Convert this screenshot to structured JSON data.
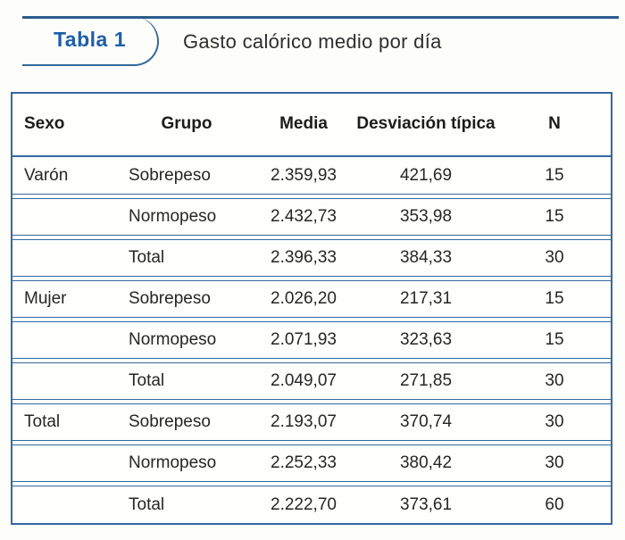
{
  "tab": {
    "label": "Tabla 1"
  },
  "title": "Gasto calórico medio por día",
  "table": {
    "columns": [
      "Sexo",
      "Grupo",
      "Media",
      "Desviación típica",
      "N"
    ],
    "rows": [
      [
        "Varón",
        "Sobrepeso",
        "2.359,93",
        "421,69",
        "15"
      ],
      [
        "",
        "Normopeso",
        "2.432,73",
        "353,98",
        "15"
      ],
      [
        "",
        "Total",
        "2.396,33",
        "384,33",
        "30"
      ],
      [
        "Mujer",
        "Sobrepeso",
        "2.026,20",
        "217,31",
        "15"
      ],
      [
        "",
        "Normopeso",
        "2.071,93",
        "323,63",
        "15"
      ],
      [
        "",
        "Total",
        "2.049,07",
        "271,85",
        "30"
      ],
      [
        "Total",
        "Sobrepeso",
        "2.193,07",
        "370,74",
        "30"
      ],
      [
        "",
        "Normopeso",
        "2.252,33",
        "380,42",
        "30"
      ],
      [
        "",
        "Total",
        "2.222,70",
        "373,61",
        "60"
      ]
    ]
  },
  "colors": {
    "accent_blue": "#1d5fa8",
    "border_blue": "#34699f",
    "rule_blue": "#2a5b8e",
    "text": "#262626"
  }
}
